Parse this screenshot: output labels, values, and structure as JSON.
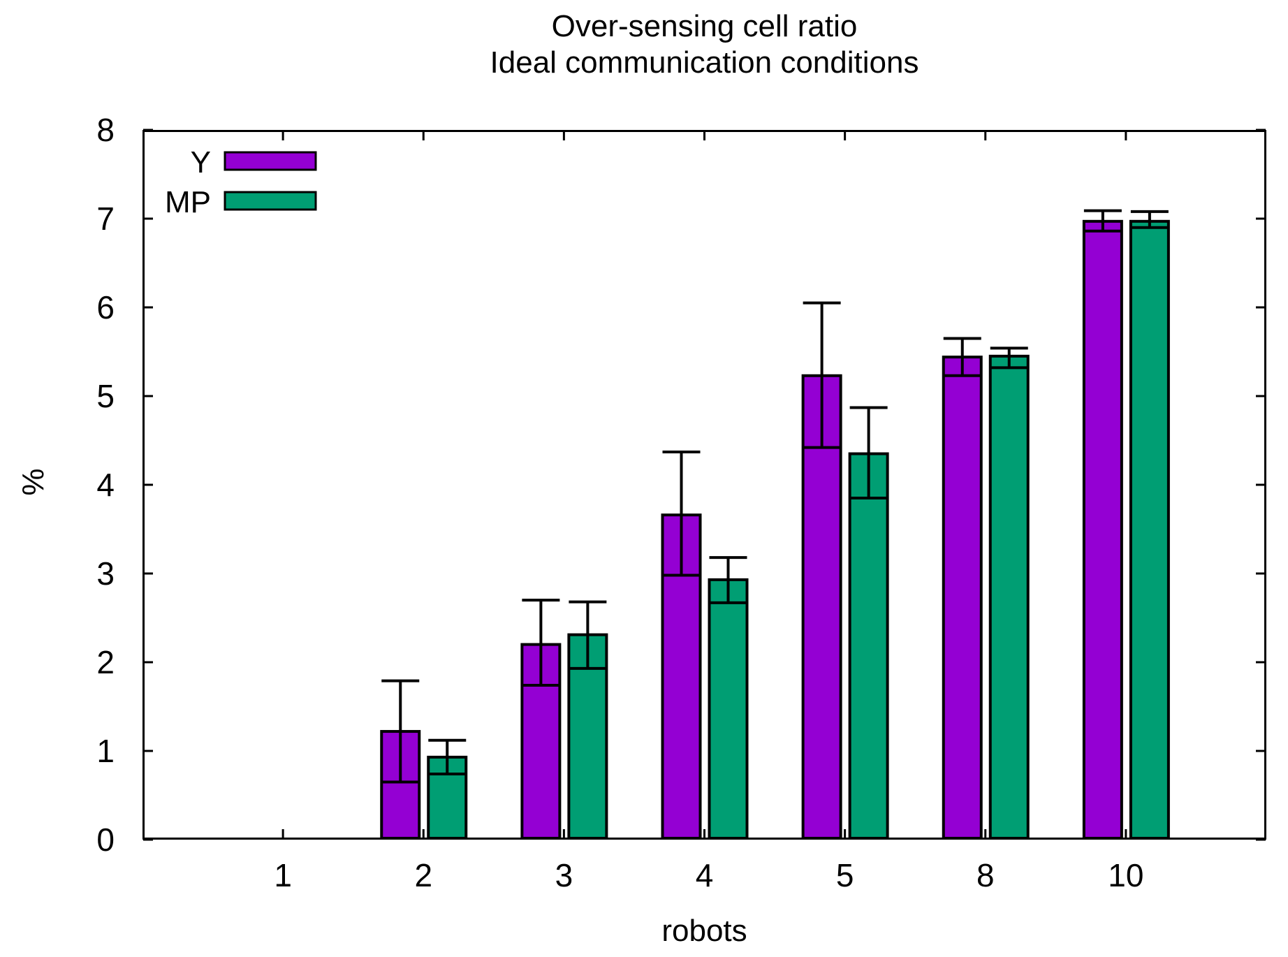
{
  "chart_data": {
    "type": "bar",
    "title": "Over-sensing cell ratio",
    "subtitle": "Ideal communication conditions",
    "xlabel": "robots",
    "ylabel": "%",
    "ylim": [
      0,
      8
    ],
    "yticks": [
      0,
      1,
      2,
      3,
      4,
      5,
      6,
      7,
      8
    ],
    "categories": [
      "1",
      "2",
      "3",
      "4",
      "5",
      "8",
      "10"
    ],
    "grid": false,
    "legend_position": "top-left",
    "bar_style": "boxerrorbars",
    "series": [
      {
        "name": "Y",
        "color": "#9400d3",
        "values": [
          null,
          1.22,
          2.2,
          3.66,
          5.23,
          5.44,
          6.97
        ],
        "err_low": [
          null,
          0.65,
          1.74,
          2.98,
          4.42,
          5.23,
          6.86
        ],
        "err_high": [
          null,
          1.79,
          2.7,
          4.37,
          6.05,
          5.65,
          7.09
        ]
      },
      {
        "name": "MP",
        "color": "#009e73",
        "values": [
          null,
          0.93,
          2.31,
          2.93,
          4.35,
          5.45,
          6.97
        ],
        "err_low": [
          null,
          0.74,
          1.93,
          2.67,
          3.85,
          5.32,
          6.9
        ],
        "err_high": [
          null,
          1.12,
          2.68,
          3.18,
          4.87,
          5.54,
          7.08
        ]
      }
    ],
    "colors": {
      "axis": "#000000",
      "background": "#ffffff"
    }
  }
}
